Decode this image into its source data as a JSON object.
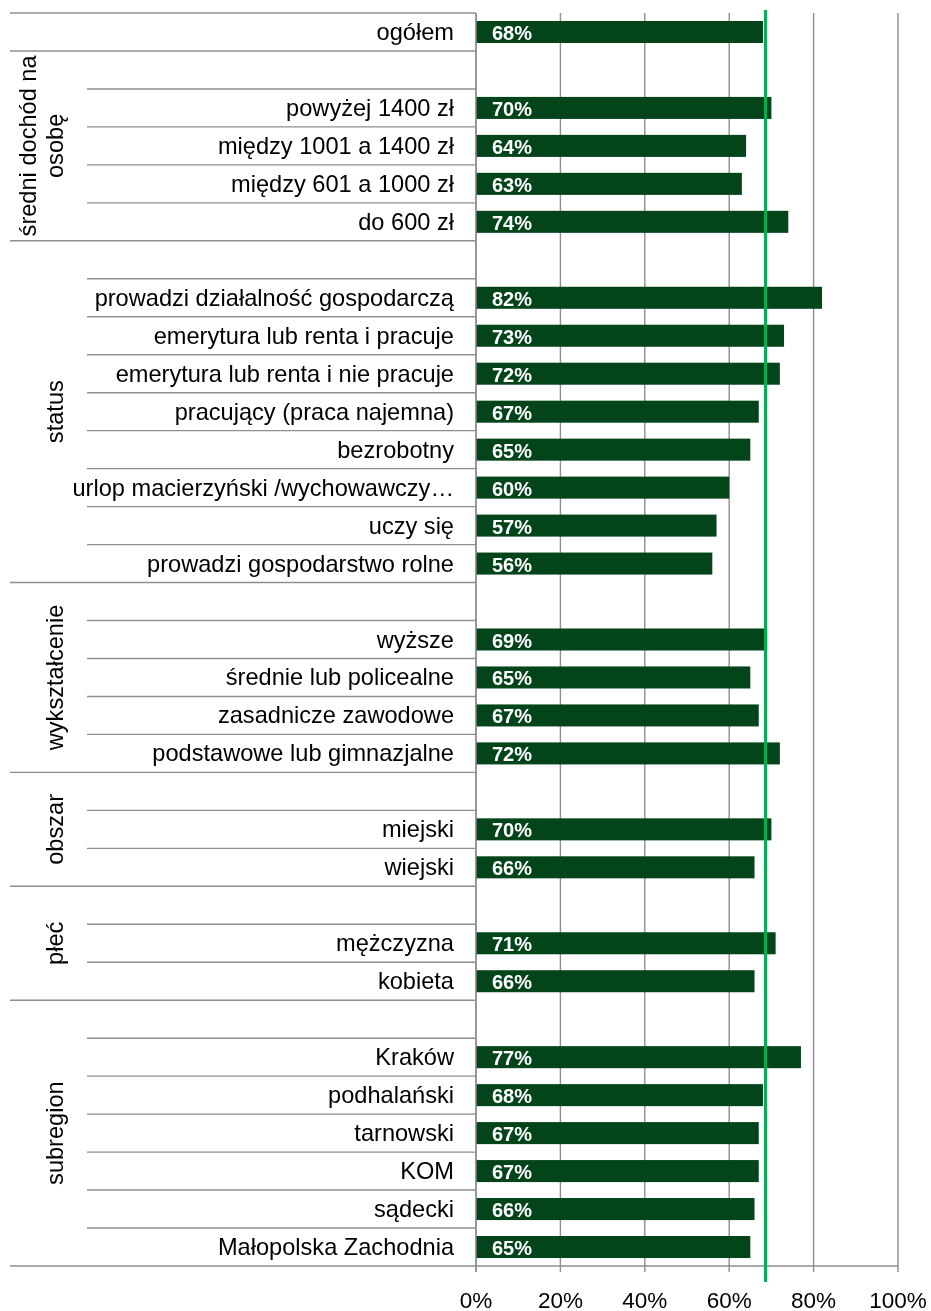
{
  "chart_data": {
    "type": "bar",
    "orientation": "horizontal",
    "categories": [
      "ogółem",
      null,
      "powyżej 1400 zł",
      "między 1001 a 1400 zł",
      "między 601 a 1000 zł",
      "do 600 zł",
      null,
      "prowadzi działalność gospodarczą",
      "emerytura lub renta i pracuje",
      "emerytura lub renta i nie pracuje",
      "pracujący (praca najemna)",
      "bezrobotny",
      "urlop macierzyński /wychowawczy…",
      "uczy się",
      "prowadzi gospodarstwo rolne",
      null,
      "wyższe",
      "średnie lub policealne",
      "zasadnicze zawodowe",
      "podstawowe lub gimnazjalne",
      null,
      "miejski",
      "wiejski",
      null,
      "mężczyzna",
      "kobieta",
      null,
      "Kraków",
      "podhalański",
      "tarnowski",
      "KOM",
      "sądecki",
      "Małopolska Zachodnia"
    ],
    "values": [
      68,
      null,
      70,
      64,
      63,
      74,
      null,
      82,
      73,
      72,
      67,
      65,
      60,
      57,
      56,
      null,
      69,
      65,
      67,
      72,
      null,
      70,
      66,
      null,
      71,
      66,
      null,
      77,
      68,
      67,
      67,
      66,
      65
    ],
    "value_labels": [
      "68%",
      null,
      "70%",
      "64%",
      "63%",
      "74%",
      null,
      "82%",
      "73%",
      "72%",
      "67%",
      "65%",
      "60%",
      "57%",
      "56%",
      null,
      "69%",
      "65%",
      "67%",
      "72%",
      null,
      "70%",
      "66%",
      null,
      "71%",
      "66%",
      null,
      "77%",
      "68%",
      "67%",
      "67%",
      "66%",
      "65%"
    ],
    "color": "#04441b",
    "xlim": [
      0,
      100
    ],
    "xticks": [
      {
        "value": 0,
        "label": "0%"
      },
      {
        "value": 20,
        "label": "20%"
      },
      {
        "value": 40,
        "label": "40%"
      },
      {
        "value": 60,
        "label": "60%"
      },
      {
        "value": 80,
        "label": "80%"
      },
      {
        "value": 100,
        "label": "100%"
      }
    ],
    "grid": "x",
    "ref_lines": [
      {
        "axis": "x",
        "value": 68.6,
        "color": "#00b050"
      }
    ],
    "annotations": [
      "średni dochód na osobę",
      "status",
      "wykształcenie",
      "obszar",
      "płeć",
      "subregion"
    ]
  }
}
